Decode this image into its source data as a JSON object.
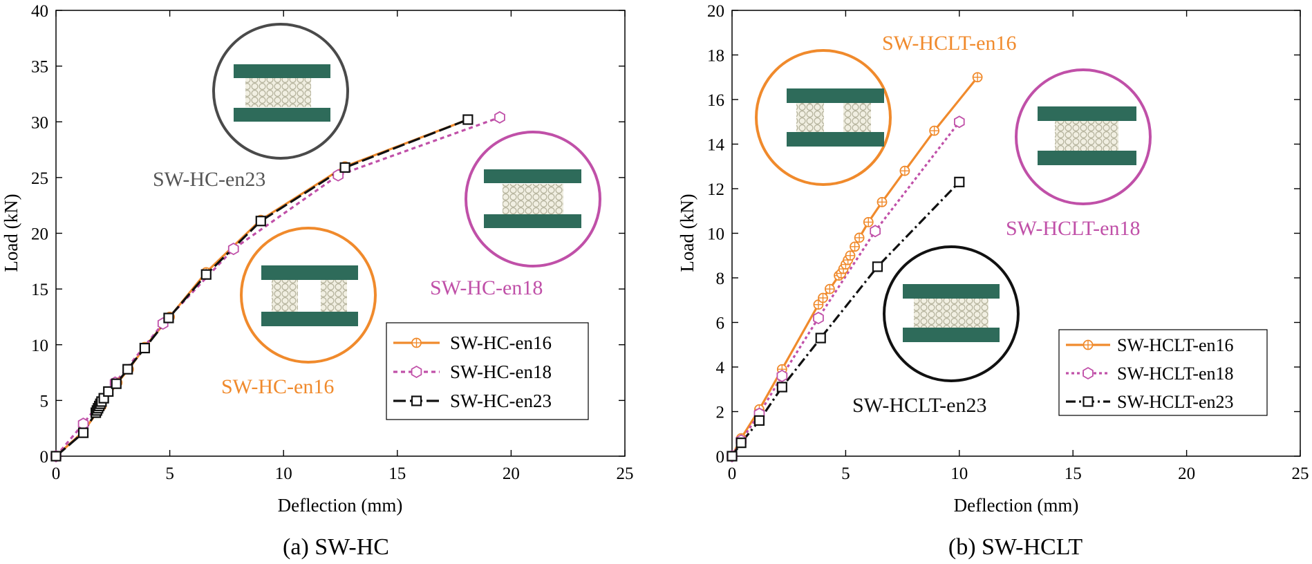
{
  "chart_data": [
    {
      "type": "line",
      "caption": "(a) SW-HC",
      "xlabel": "Deflection (mm)",
      "ylabel": "Load (kN)",
      "xlim": [
        0,
        25
      ],
      "ylim": [
        0,
        40
      ],
      "xticks": [
        0,
        5,
        10,
        15,
        20,
        25
      ],
      "yticks": [
        0,
        5,
        10,
        15,
        20,
        25,
        30,
        35,
        40
      ],
      "legend_position": "bottom-right",
      "series": [
        {
          "name": "SW-HC-en16",
          "color": "#f08a2c",
          "dash": "",
          "marker": "circle-plus",
          "x": [
            0,
            1.2,
            2.0,
            2.7,
            3.2,
            3.9,
            5.0,
            6.6,
            9.0,
            12.7,
            18.1
          ],
          "y": [
            0,
            2.2,
            4.5,
            6.6,
            7.8,
            9.8,
            12.5,
            16.5,
            21.2,
            26.0,
            30.2
          ]
        },
        {
          "name": "SW-HC-en18",
          "color": "#c050a8",
          "dash": "6,5",
          "marker": "hexagon",
          "x": [
            0,
            1.2,
            2.6,
            4.7,
            7.8,
            12.4,
            19.5
          ],
          "y": [
            0,
            2.9,
            6.6,
            11.9,
            18.6,
            25.2,
            30.4
          ]
        },
        {
          "name": "SW-HC-en23",
          "color": "#111111",
          "dash": "18,6",
          "marker": "square",
          "x": [
            0,
            1.2,
            1.75,
            1.8,
            1.85,
            1.9,
            1.95,
            2.0,
            2.1,
            2.3,
            2.65,
            3.15,
            3.9,
            4.95,
            6.6,
            9.0,
            12.7,
            18.1
          ],
          "y": [
            0,
            2.1,
            3.9,
            4.1,
            4.3,
            4.5,
            4.7,
            4.9,
            5.2,
            5.8,
            6.5,
            7.8,
            9.7,
            12.4,
            16.3,
            21.1,
            25.9,
            30.2
          ]
        }
      ],
      "annotations": [
        {
          "text": "SW-HC-en23",
          "color": "#555555"
        },
        {
          "text": "SW-HC-en18",
          "color": "#c050a8"
        },
        {
          "text": "SW-HC-en16",
          "color": "#f08a2c"
        }
      ]
    },
    {
      "type": "line",
      "caption": "(b) SW-HCLT",
      "xlabel": "Deflection (mm)",
      "ylabel": "Load (kN)",
      "xlim": [
        0,
        25
      ],
      "ylim": [
        0,
        20
      ],
      "xticks": [
        0,
        5,
        10,
        15,
        20,
        25
      ],
      "yticks": [
        0,
        2,
        4,
        6,
        8,
        10,
        12,
        14,
        16,
        18,
        20
      ],
      "legend_position": "bottom-right",
      "series": [
        {
          "name": "SW-HCLT-en16",
          "color": "#f08a2c",
          "dash": "",
          "marker": "circle-plus",
          "x": [
            0,
            0.4,
            1.2,
            2.2,
            3.8,
            4.0,
            4.3,
            4.7,
            4.8,
            4.9,
            5.0,
            5.1,
            5.2,
            5.4,
            5.6,
            6.0,
            6.6,
            7.6,
            8.9,
            10.8
          ],
          "y": [
            0,
            0.8,
            2.1,
            3.9,
            6.8,
            7.1,
            7.5,
            8.1,
            8.2,
            8.4,
            8.6,
            8.8,
            9.0,
            9.4,
            9.8,
            10.5,
            11.4,
            12.8,
            14.6,
            17.0
          ]
        },
        {
          "name": "SW-HCLT-en18",
          "color": "#c050a8",
          "dash": "4,4",
          "marker": "hexagon",
          "x": [
            0,
            0.4,
            1.2,
            2.2,
            3.8,
            6.3,
            10.0
          ],
          "y": [
            0,
            0.7,
            1.9,
            3.6,
            6.2,
            10.1,
            15.0
          ]
        },
        {
          "name": "SW-HCLT-en23",
          "color": "#111111",
          "dash": "14,5,3,5",
          "marker": "square",
          "x": [
            0,
            0.4,
            1.2,
            2.2,
            3.9,
            6.4,
            10.0
          ],
          "y": [
            0,
            0.6,
            1.6,
            3.1,
            5.3,
            8.5,
            12.3
          ]
        }
      ],
      "annotations": [
        {
          "text": "SW-HCLT-en16",
          "color": "#f08a2c"
        },
        {
          "text": "SW-HCLT-en18",
          "color": "#c050a8"
        },
        {
          "text": "SW-HCLT-en23",
          "color": "#111111"
        }
      ]
    }
  ]
}
